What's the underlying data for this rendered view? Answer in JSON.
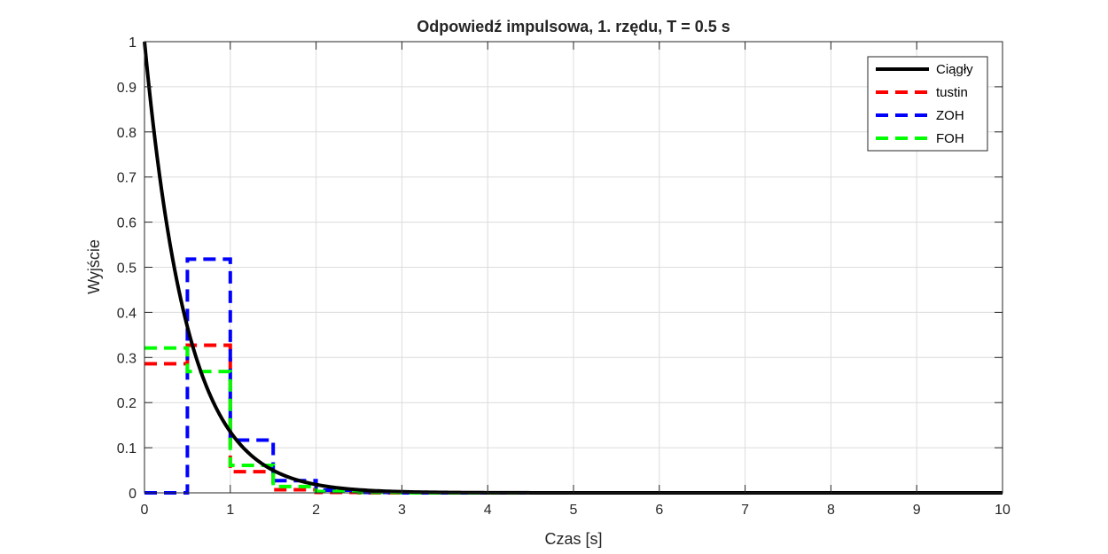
{
  "chart_data": {
    "type": "line",
    "title": "Odpowiedź impulsowa, 1. rzędu, T = 0.5 s",
    "xlabel": "Czas [s]",
    "ylabel": "Wyjście",
    "xlim": [
      0,
      10
    ],
    "ylim": [
      0,
      1
    ],
    "x_ticks": [
      "0",
      "1",
      "2",
      "3",
      "4",
      "5",
      "6",
      "7",
      "8",
      "9",
      "10"
    ],
    "y_ticks": [
      "0",
      "0.1",
      "0.2",
      "0.3",
      "0.4",
      "0.5",
      "0.6",
      "0.7",
      "0.8",
      "0.9",
      "1"
    ],
    "grid": true,
    "legend_position": "top-right",
    "series": [
      {
        "name": "Ciągły",
        "color": "#000000",
        "style": "solid",
        "function": "exp(-2t)"
      },
      {
        "name": "tustin",
        "color": "#ff0000",
        "style": "dashed-stairs",
        "t_step": 0.5,
        "values": [
          0.286,
          0.327,
          0.047,
          0.007,
          0.001,
          0.0,
          0.0,
          0.0,
          0.0,
          0.0,
          0.0,
          0.0,
          0.0,
          0.0,
          0.0,
          0.0,
          0.0,
          0.0,
          0.0,
          0.0,
          0.0
        ]
      },
      {
        "name": "ZOH",
        "color": "#0000ff",
        "style": "dashed-stairs",
        "t_step": 0.5,
        "values": [
          0.0,
          0.518,
          0.117,
          0.027,
          0.006,
          0.001,
          0.0,
          0.0,
          0.0,
          0.0,
          0.0,
          0.0,
          0.0,
          0.0,
          0.0,
          0.0,
          0.0,
          0.0,
          0.0,
          0.0,
          0.0
        ]
      },
      {
        "name": "FOH",
        "color": "#00ff00",
        "style": "dashed-stairs",
        "t_step": 0.5,
        "values": [
          0.321,
          0.269,
          0.061,
          0.014,
          0.003,
          0.001,
          0.0,
          0.0,
          0.0,
          0.0,
          0.0,
          0.0,
          0.0,
          0.0,
          0.0,
          0.0,
          0.0,
          0.0,
          0.0,
          0.0,
          0.0
        ]
      }
    ]
  }
}
